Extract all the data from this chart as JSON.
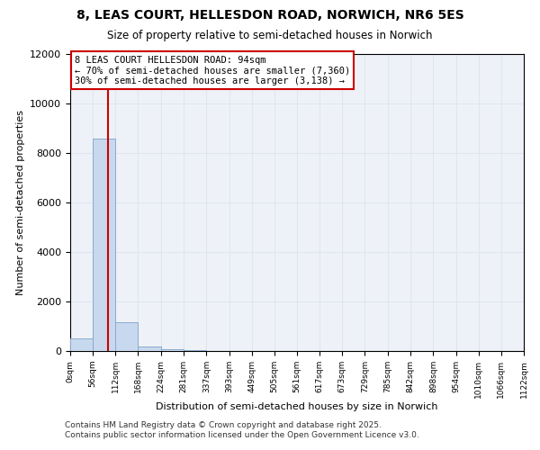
{
  "title": "8, LEAS COURT, HELLESDON ROAD, NORWICH, NR6 5ES",
  "subtitle": "Size of property relative to semi-detached houses in Norwich",
  "xlabel": "Distribution of semi-detached houses by size in Norwich",
  "ylabel": "Number of semi-detached properties",
  "bar_values": [
    500,
    8600,
    1150,
    180,
    80,
    20,
    5,
    2,
    1,
    1,
    0,
    0,
    0,
    0,
    0,
    0,
    0,
    0,
    0,
    0
  ],
  "bin_edges": [
    0,
    56,
    112,
    168,
    224,
    281,
    337,
    393,
    449,
    505,
    561,
    617,
    673,
    729,
    785,
    842,
    898,
    954,
    1010,
    1066,
    1122
  ],
  "bar_color": "#c8d8ee",
  "bar_edgecolor": "#8aabcc",
  "property_size": 94,
  "property_line_color": "#cc0000",
  "annotation_text": "8 LEAS COURT HELLESDON ROAD: 94sqm\n← 70% of semi-detached houses are smaller (7,360)\n30% of semi-detached houses are larger (3,138) →",
  "annotation_box_color": "#ffffff",
  "annotation_box_edgecolor": "#cc0000",
  "ylim": [
    0,
    12000
  ],
  "yticks": [
    0,
    2000,
    4000,
    6000,
    8000,
    10000,
    12000
  ],
  "grid_color": "#dde6f0",
  "background_color": "#eef2f8",
  "footer_line1": "Contains HM Land Registry data © Crown copyright and database right 2025.",
  "footer_line2": "Contains public sector information licensed under the Open Government Licence v3.0.",
  "tick_labels": [
    "0sqm",
    "56sqm",
    "112sqm",
    "168sqm",
    "224sqm",
    "281sqm",
    "337sqm",
    "393sqm",
    "449sqm",
    "505sqm",
    "561sqm",
    "617sqm",
    "673sqm",
    "729sqm",
    "785sqm",
    "842sqm",
    "898sqm",
    "954sqm",
    "1010sqm",
    "1066sqm",
    "1122sqm"
  ],
  "title_fontsize": 10,
  "subtitle_fontsize": 8.5,
  "ylabel_fontsize": 8,
  "xlabel_fontsize": 8,
  "ytick_fontsize": 8,
  "xtick_fontsize": 6.5,
  "annotation_fontsize": 7.5,
  "footer_fontsize": 6.5
}
